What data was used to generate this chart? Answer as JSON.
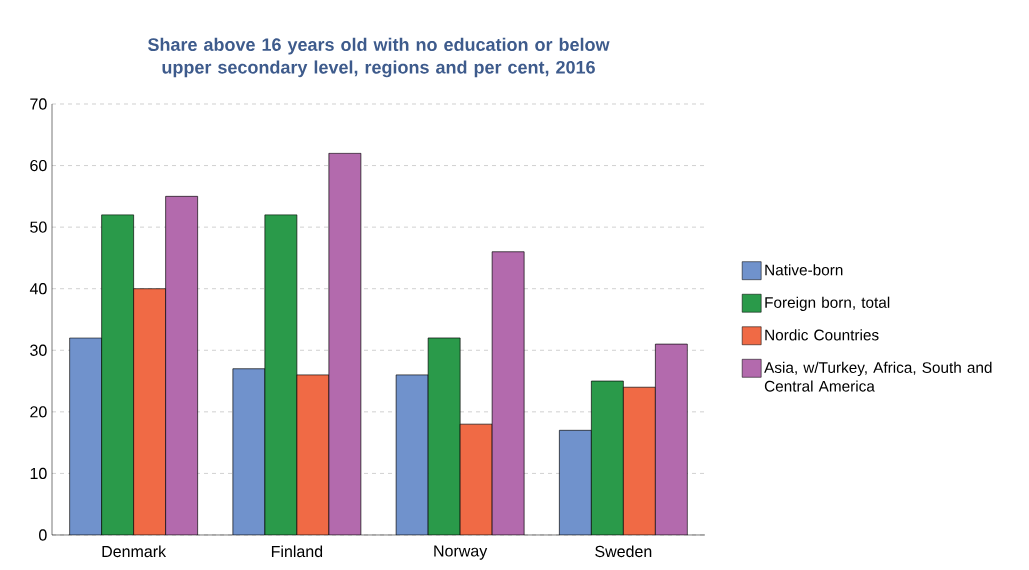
{
  "chart_data": {
    "type": "bar",
    "title": "Share above 16 years old with no education or below upper secondary level, regions and per cent, 2016",
    "categories": [
      "Denmark",
      "Finland",
      "Norway",
      "Sweden"
    ],
    "series": [
      {
        "name": "Native-born",
        "color": "#7092cc",
        "values": [
          32,
          27,
          26,
          17
        ]
      },
      {
        "name": "Foreign born, total",
        "color": "#2a9a4a",
        "values": [
          52,
          52,
          32,
          25
        ]
      },
      {
        "name": "Nordic Countries",
        "color": "#f06a45",
        "values": [
          40,
          26,
          18,
          24
        ]
      },
      {
        "name": "Asia, w/Turkey, Africa, South and Central America",
        "color": "#b36aad",
        "values": [
          55,
          62,
          46,
          31
        ]
      }
    ],
    "ylim": [
      0,
      70
    ],
    "yticks": [
      0,
      10,
      20,
      30,
      40,
      50,
      60,
      70
    ],
    "grid": "y",
    "legend": "right"
  }
}
